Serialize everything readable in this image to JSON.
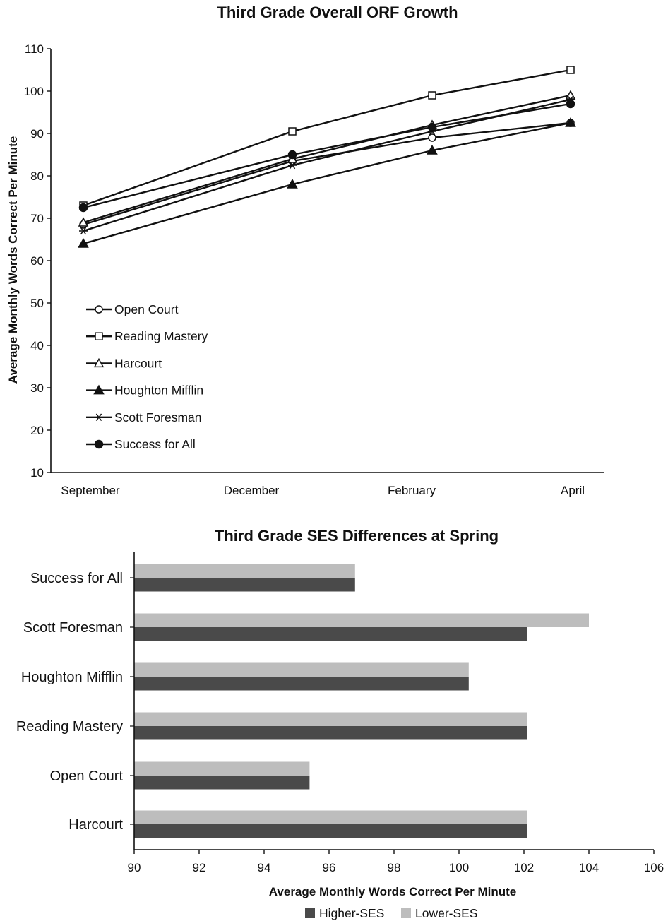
{
  "chart_data": [
    {
      "type": "line",
      "title": "Third Grade Overall ORF Growth",
      "xlabel": "",
      "ylabel": "Average Monthly Words Correct Per Minute",
      "categories": [
        "September",
        "December",
        "February",
        "April"
      ],
      "ylim": [
        10,
        110
      ],
      "yticks": [
        10,
        20,
        30,
        40,
        50,
        60,
        70,
        80,
        90,
        100,
        110
      ],
      "grid": false,
      "legend_position": "bottom-left (inside plot)",
      "series": [
        {
          "name": "Open Court",
          "marker": "open-circle",
          "values": [
            68.5,
            83.5,
            89,
            92.5
          ]
        },
        {
          "name": "Reading Mastery",
          "marker": "open-square",
          "values": [
            73,
            90.5,
            99,
            105
          ]
        },
        {
          "name": "Harcourt",
          "marker": "open-triangle",
          "values": [
            69,
            84,
            92,
            99
          ]
        },
        {
          "name": "Houghton Mifflin",
          "marker": "filled-triangle",
          "values": [
            64,
            78,
            86,
            92.5
          ]
        },
        {
          "name": "Scott Foresman",
          "marker": "asterisk",
          "values": [
            67,
            82.5,
            90.5,
            98
          ]
        },
        {
          "name": "Success for All",
          "marker": "filled-circle",
          "values": [
            72.5,
            85,
            91.5,
            97
          ]
        }
      ]
    },
    {
      "type": "bar",
      "orientation": "horizontal",
      "title": "Third Grade SES Differences at Spring",
      "xlabel": "Average Monthly Words Correct Per Minute",
      "ylabel": "",
      "categories": [
        "Success for All",
        "Scott Foresman",
        "Houghton Mifflin",
        "Reading Mastery",
        "Open Court",
        "Harcourt"
      ],
      "xlim": [
        90,
        106
      ],
      "xticks": [
        90,
        92,
        94,
        96,
        98,
        100,
        102,
        104,
        106
      ],
      "legend_position": "bottom-center",
      "series": [
        {
          "name": "Higher-SES",
          "color": "#4a4a4a",
          "values": [
            96.8,
            102.1,
            100.3,
            102.1,
            95.4,
            102.1
          ]
        },
        {
          "name": "Lower-SES",
          "color": "#bdbdbd",
          "values": [
            96.8,
            104.0,
            100.3,
            102.1,
            95.4,
            102.1
          ]
        }
      ]
    }
  ]
}
